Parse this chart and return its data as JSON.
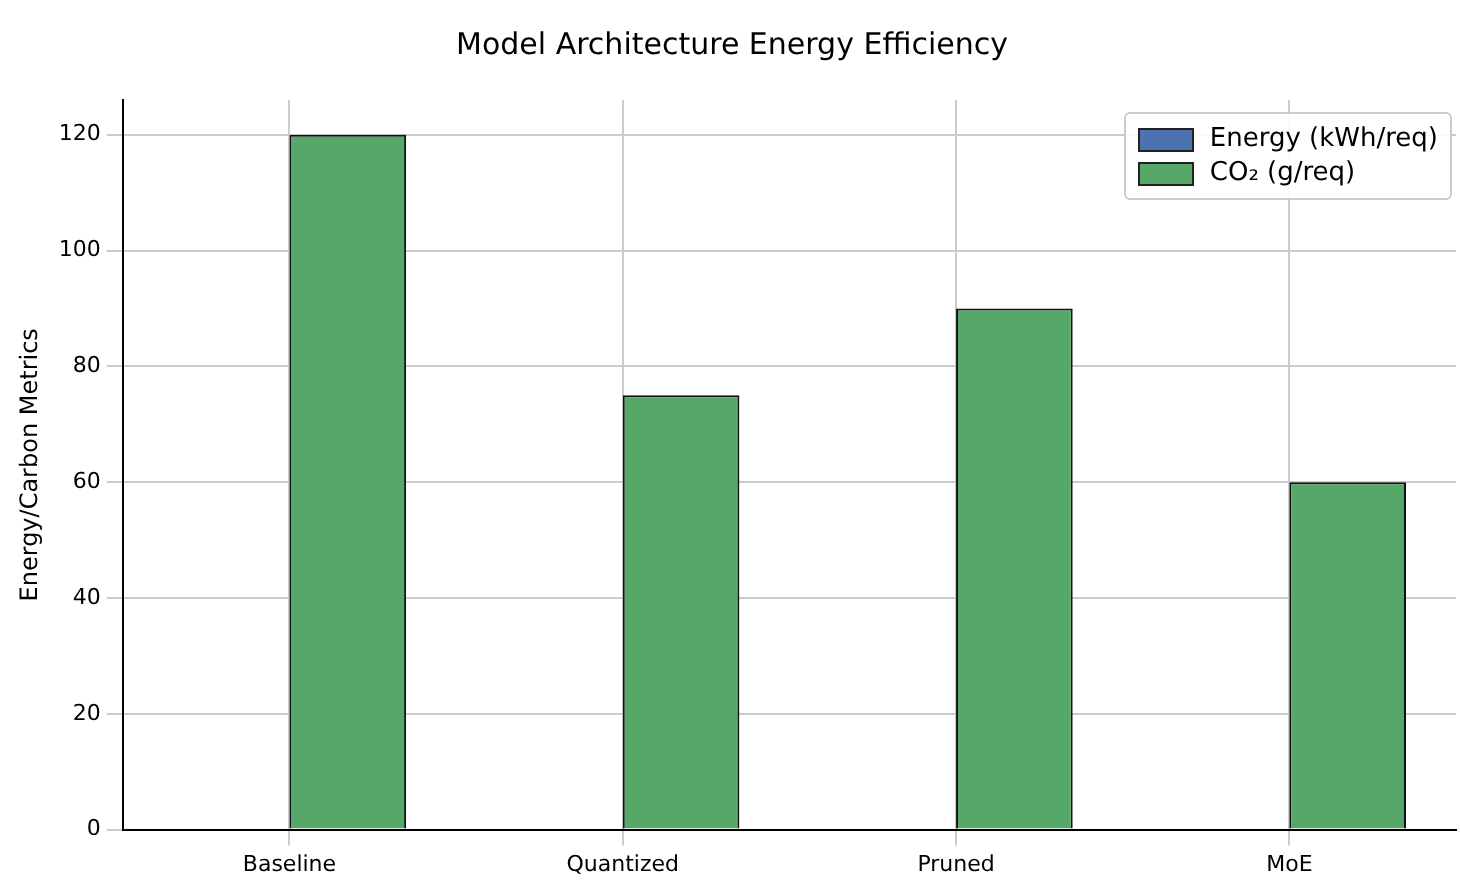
{
  "chart_data": {
    "type": "bar",
    "title": "Model Architecture Energy Efficiency",
    "ylabel": "Energy/Carbon Metrics",
    "categories": [
      "Baseline",
      "Quantized",
      "Pruned",
      "MoE"
    ],
    "series": [
      {
        "name": "Energy (kWh/req)",
        "color": "#4c72b0",
        "values": [
          0,
          0,
          0,
          0
        ]
      },
      {
        "name": "CO₂ (g/req)",
        "color": "#55a868",
        "values": [
          120,
          75,
          90,
          60
        ]
      }
    ],
    "ylim": [
      0,
      126
    ],
    "yticks": [
      0,
      20,
      40,
      60,
      80,
      100,
      120
    ],
    "grid": true,
    "legend": "top right"
  }
}
